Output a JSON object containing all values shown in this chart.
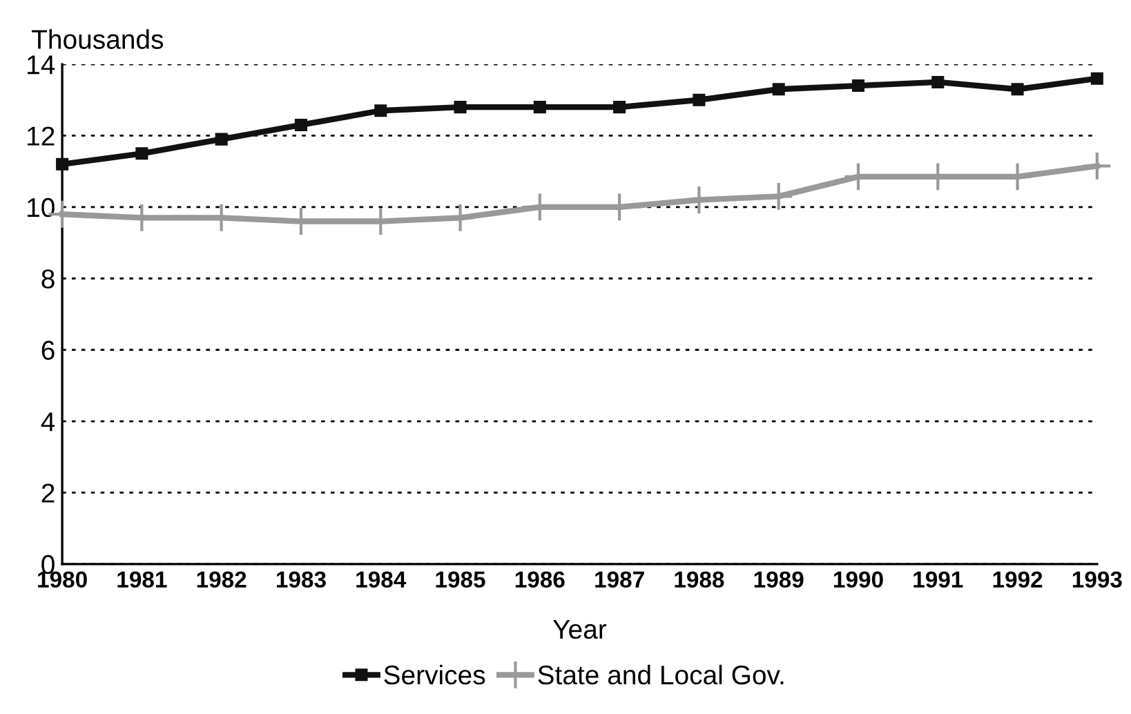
{
  "chart_data": {
    "type": "line",
    "ylabel": "Thousands",
    "xlabel": "Year",
    "categories": [
      "1980",
      "1981",
      "1982",
      "1983",
      "1984",
      "1985",
      "1986",
      "1987",
      "1988",
      "1989",
      "1990",
      "1991",
      "1992",
      "1993"
    ],
    "series": [
      {
        "name": "Services",
        "color": "#111111",
        "marker": "square",
        "values": [
          11.2,
          11.5,
          11.9,
          12.3,
          12.7,
          12.8,
          12.8,
          12.8,
          13.0,
          13.3,
          13.4,
          13.5,
          13.3,
          13.6
        ]
      },
      {
        "name": "State and Local Gov.",
        "color": "#999999",
        "marker": "cross",
        "values": [
          9.8,
          9.7,
          9.7,
          9.6,
          9.6,
          9.7,
          10.0,
          10.0,
          10.2,
          10.3,
          10.85,
          10.85,
          10.85,
          11.15
        ]
      }
    ],
    "ylim": [
      0,
      14
    ],
    "yticks": [
      0,
      2,
      4,
      6,
      8,
      10,
      12,
      14
    ],
    "grid": "y",
    "legend": "bottom"
  }
}
